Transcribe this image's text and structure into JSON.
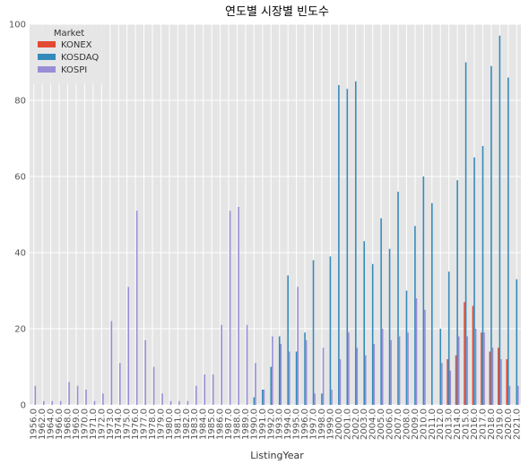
{
  "chart_data": {
    "type": "bar",
    "title": "연도별 시장별 빈도수",
    "xlabel": "ListingYear",
    "ylabel": "",
    "ylim": [
      0,
      100
    ],
    "yticks": [
      0,
      20,
      40,
      60,
      80,
      100
    ],
    "grid": true,
    "legend": {
      "title": "Market",
      "placement": "top-left"
    },
    "categories": [
      "1956.0",
      "1962.0",
      "1964.0",
      "1966.0",
      "1968.0",
      "1969.0",
      "1970.0",
      "1971.0",
      "1972.0",
      "1973.0",
      "1974.0",
      "1975.0",
      "1976.0",
      "1977.0",
      "1978.0",
      "1979.0",
      "1980.0",
      "1981.0",
      "1982.0",
      "1983.0",
      "1984.0",
      "1985.0",
      "1986.0",
      "1987.0",
      "1988.0",
      "1989.0",
      "1990.0",
      "1991.0",
      "1992.0",
      "1993.0",
      "1994.0",
      "1995.0",
      "1996.0",
      "1997.0",
      "1998.0",
      "1999.0",
      "2000.0",
      "2001.0",
      "2002.0",
      "2003.0",
      "2004.0",
      "2005.0",
      "2006.0",
      "2007.0",
      "2008.0",
      "2009.0",
      "2010.0",
      "2011.0",
      "2012.0",
      "2013.0",
      "2014.0",
      "2015.0",
      "2016.0",
      "2017.0",
      "2018.0",
      "2019.0",
      "2020.0",
      "2021.0"
    ],
    "series": [
      {
        "name": "KONEX",
        "color": "#e24a33",
        "values": [
          0,
          0,
          0,
          0,
          0,
          0,
          0,
          0,
          0,
          0,
          0,
          0,
          0,
          0,
          0,
          0,
          0,
          0,
          0,
          0,
          0,
          0,
          0,
          0,
          0,
          0,
          0,
          0,
          0,
          0,
          0,
          0,
          0,
          0,
          0,
          0,
          0,
          0,
          0,
          0,
          0,
          0,
          0,
          0,
          0,
          0,
          0,
          0,
          0,
          12,
          13,
          27,
          26,
          19,
          14,
          15,
          12,
          0
        ]
      },
      {
        "name": "KOSDAQ",
        "color": "#348abd",
        "values": [
          0,
          0,
          0,
          0,
          0,
          0,
          0,
          0,
          0,
          0,
          0,
          0,
          0,
          0,
          0,
          0,
          0,
          0,
          0,
          0,
          0,
          0,
          0,
          0,
          0,
          0,
          2,
          4,
          10,
          18,
          34,
          14,
          19,
          38,
          3,
          39,
          84,
          83,
          85,
          43,
          37,
          49,
          41,
          56,
          30,
          47,
          60,
          53,
          20,
          35,
          59,
          90,
          65,
          68,
          89,
          97,
          86,
          33
        ]
      },
      {
        "name": "KOSPI",
        "color": "#988ed5",
        "values": [
          5,
          1,
          1,
          1,
          6,
          5,
          4,
          1,
          3,
          22,
          11,
          31,
          51,
          17,
          10,
          3,
          1,
          1,
          1,
          5,
          8,
          8,
          21,
          51,
          52,
          21,
          11,
          4,
          18,
          16,
          14,
          31,
          17,
          3,
          15,
          4,
          12,
          19,
          15,
          13,
          16,
          20,
          17,
          18,
          19,
          28,
          25,
          0,
          11,
          9,
          18,
          18,
          20,
          19,
          15,
          12,
          5,
          5
        ]
      }
    ]
  }
}
